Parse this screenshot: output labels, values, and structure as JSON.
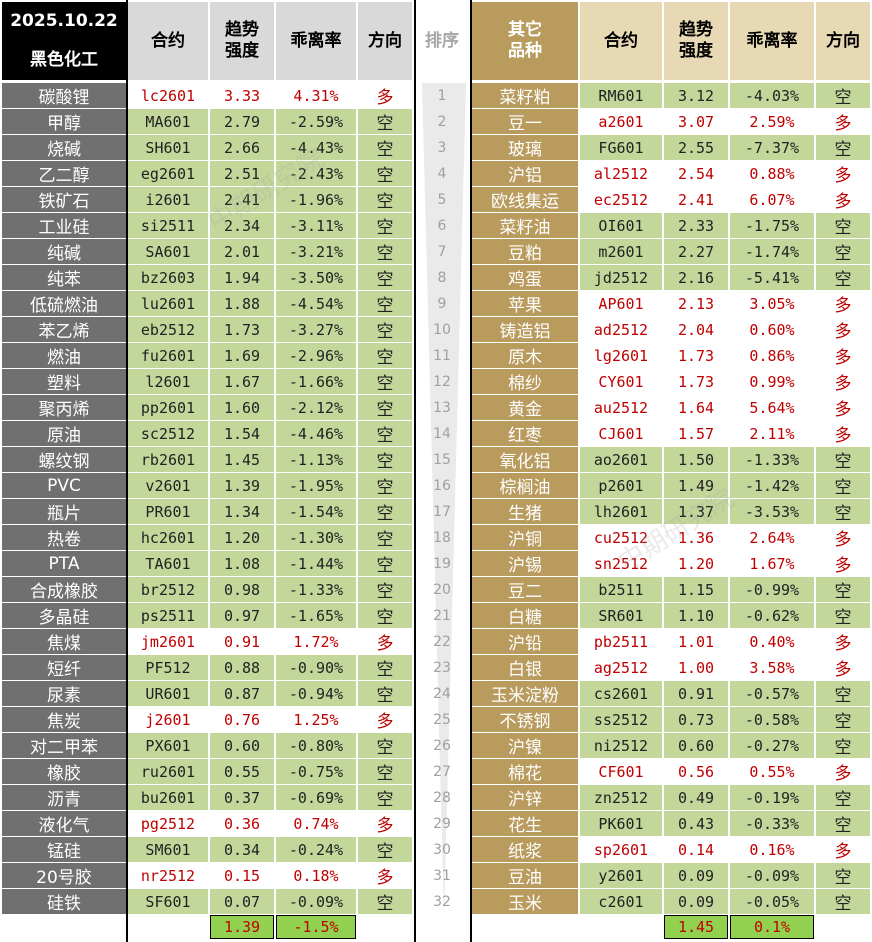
{
  "header": {
    "date": "2025.10.22",
    "left_group": "黑色化工",
    "col_contract": "合约",
    "col_trend": "趋势强度",
    "col_deviation": "乖离率",
    "col_direction": "方向",
    "col_rank": "排序",
    "right_group": "其它品种"
  },
  "colors": {
    "long_text": "#c00000",
    "short_bg": "#c4d79b",
    "left_cat_bg": "#707070",
    "right_cat_bg": "#b99b5e"
  },
  "left_rows": [
    {
      "name": "碳酸锂",
      "contract": "lc2601",
      "trend": "3.33",
      "dev": "4.31%",
      "dir": "多"
    },
    {
      "name": "甲醇",
      "contract": "MA601",
      "trend": "2.79",
      "dev": "-2.59%",
      "dir": "空"
    },
    {
      "name": "烧碱",
      "contract": "SH601",
      "trend": "2.66",
      "dev": "-4.43%",
      "dir": "空"
    },
    {
      "name": "乙二醇",
      "contract": "eg2601",
      "trend": "2.51",
      "dev": "-2.43%",
      "dir": "空"
    },
    {
      "name": "铁矿石",
      "contract": "i2601",
      "trend": "2.41",
      "dev": "-1.96%",
      "dir": "空"
    },
    {
      "name": "工业硅",
      "contract": "si2511",
      "trend": "2.34",
      "dev": "-3.11%",
      "dir": "空"
    },
    {
      "name": "纯碱",
      "contract": "SA601",
      "trend": "2.01",
      "dev": "-3.21%",
      "dir": "空"
    },
    {
      "name": "纯苯",
      "contract": "bz2603",
      "trend": "1.94",
      "dev": "-3.50%",
      "dir": "空"
    },
    {
      "name": "低硫燃油",
      "contract": "lu2601",
      "trend": "1.88",
      "dev": "-4.54%",
      "dir": "空"
    },
    {
      "name": "苯乙烯",
      "contract": "eb2512",
      "trend": "1.73",
      "dev": "-3.27%",
      "dir": "空"
    },
    {
      "name": "燃油",
      "contract": "fu2601",
      "trend": "1.69",
      "dev": "-2.96%",
      "dir": "空"
    },
    {
      "name": "塑料",
      "contract": "l2601",
      "trend": "1.67",
      "dev": "-1.66%",
      "dir": "空"
    },
    {
      "name": "聚丙烯",
      "contract": "pp2601",
      "trend": "1.60",
      "dev": "-2.12%",
      "dir": "空"
    },
    {
      "name": "原油",
      "contract": "sc2512",
      "trend": "1.54",
      "dev": "-4.46%",
      "dir": "空"
    },
    {
      "name": "螺纹钢",
      "contract": "rb2601",
      "trend": "1.45",
      "dev": "-1.13%",
      "dir": "空"
    },
    {
      "name": "PVC",
      "contract": "v2601",
      "trend": "1.39",
      "dev": "-1.95%",
      "dir": "空"
    },
    {
      "name": "瓶片",
      "contract": "PR601",
      "trend": "1.34",
      "dev": "-1.54%",
      "dir": "空"
    },
    {
      "name": "热卷",
      "contract": "hc2601",
      "trend": "1.20",
      "dev": "-1.30%",
      "dir": "空"
    },
    {
      "name": "PTA",
      "contract": "TA601",
      "trend": "1.08",
      "dev": "-1.44%",
      "dir": "空"
    },
    {
      "name": "合成橡胶",
      "contract": "br2512",
      "trend": "0.98",
      "dev": "-1.33%",
      "dir": "空"
    },
    {
      "name": "多晶硅",
      "contract": "ps2511",
      "trend": "0.97",
      "dev": "-1.65%",
      "dir": "空"
    },
    {
      "name": "焦煤",
      "contract": "jm2601",
      "trend": "0.91",
      "dev": "1.72%",
      "dir": "多"
    },
    {
      "name": "短纤",
      "contract": "PF512",
      "trend": "0.88",
      "dev": "-0.90%",
      "dir": "空"
    },
    {
      "name": "尿素",
      "contract": "UR601",
      "trend": "0.87",
      "dev": "-0.94%",
      "dir": "空"
    },
    {
      "name": "焦炭",
      "contract": "j2601",
      "trend": "0.76",
      "dev": "1.25%",
      "dir": "多"
    },
    {
      "name": "对二甲苯",
      "contract": "PX601",
      "trend": "0.60",
      "dev": "-0.80%",
      "dir": "空"
    },
    {
      "name": "橡胶",
      "contract": "ru2601",
      "trend": "0.55",
      "dev": "-0.75%",
      "dir": "空"
    },
    {
      "name": "沥青",
      "contract": "bu2601",
      "trend": "0.37",
      "dev": "-0.69%",
      "dir": "空"
    },
    {
      "name": "液化气",
      "contract": "pg2512",
      "trend": "0.36",
      "dev": "0.74%",
      "dir": "多"
    },
    {
      "name": "锰硅",
      "contract": "SM601",
      "trend": "0.34",
      "dev": "-0.24%",
      "dir": "空"
    },
    {
      "name": "20号胶",
      "contract": "nr2512",
      "trend": "0.15",
      "dev": "0.18%",
      "dir": "多"
    },
    {
      "name": "硅铁",
      "contract": "SF601",
      "trend": "0.07",
      "dev": "-0.09%",
      "dir": "空"
    }
  ],
  "ranks": [
    "1",
    "2",
    "3",
    "4",
    "5",
    "6",
    "7",
    "8",
    "9",
    "10",
    "11",
    "12",
    "13",
    "14",
    "15",
    "16",
    "17",
    "18",
    "19",
    "20",
    "21",
    "22",
    "23",
    "24",
    "25",
    "26",
    "27",
    "28",
    "29",
    "30",
    "31",
    "32"
  ],
  "right_rows": [
    {
      "name": "菜籽粕",
      "contract": "RM601",
      "trend": "3.12",
      "dev": "-4.03%",
      "dir": "空"
    },
    {
      "name": "豆一",
      "contract": "a2601",
      "trend": "3.07",
      "dev": "2.59%",
      "dir": "多"
    },
    {
      "name": "玻璃",
      "contract": "FG601",
      "trend": "2.55",
      "dev": "-7.37%",
      "dir": "空"
    },
    {
      "name": "沪铝",
      "contract": "al2512",
      "trend": "2.54",
      "dev": "0.88%",
      "dir": "多"
    },
    {
      "name": "欧线集运",
      "contract": "ec2512",
      "trend": "2.41",
      "dev": "6.07%",
      "dir": "多"
    },
    {
      "name": "菜籽油",
      "contract": "OI601",
      "trend": "2.33",
      "dev": "-1.75%",
      "dir": "空"
    },
    {
      "name": "豆粕",
      "contract": "m2601",
      "trend": "2.27",
      "dev": "-1.74%",
      "dir": "空"
    },
    {
      "name": "鸡蛋",
      "contract": "jd2512",
      "trend": "2.16",
      "dev": "-5.41%",
      "dir": "空"
    },
    {
      "name": "苹果",
      "contract": "AP601",
      "trend": "2.13",
      "dev": "3.05%",
      "dir": "多"
    },
    {
      "name": "铸造铝",
      "contract": "ad2512",
      "trend": "2.04",
      "dev": "0.60%",
      "dir": "多"
    },
    {
      "name": "原木",
      "contract": "lg2601",
      "trend": "1.73",
      "dev": "0.86%",
      "dir": "多"
    },
    {
      "name": "棉纱",
      "contract": "CY601",
      "trend": "1.73",
      "dev": "0.99%",
      "dir": "多"
    },
    {
      "name": "黄金",
      "contract": "au2512",
      "trend": "1.64",
      "dev": "5.64%",
      "dir": "多"
    },
    {
      "name": "红枣",
      "contract": "CJ601",
      "trend": "1.57",
      "dev": "2.11%",
      "dir": "多"
    },
    {
      "name": "氧化铝",
      "contract": "ao2601",
      "trend": "1.50",
      "dev": "-1.33%",
      "dir": "空"
    },
    {
      "name": "棕榈油",
      "contract": "p2601",
      "trend": "1.49",
      "dev": "-1.42%",
      "dir": "空"
    },
    {
      "name": "生猪",
      "contract": "lh2601",
      "trend": "1.37",
      "dev": "-3.53%",
      "dir": "空"
    },
    {
      "name": "沪铜",
      "contract": "cu2512",
      "trend": "1.36",
      "dev": "2.64%",
      "dir": "多"
    },
    {
      "name": "沪锡",
      "contract": "sn2512",
      "trend": "1.20",
      "dev": "1.67%",
      "dir": "多"
    },
    {
      "name": "豆二",
      "contract": "b2511",
      "trend": "1.15",
      "dev": "-0.99%",
      "dir": "空"
    },
    {
      "name": "白糖",
      "contract": "SR601",
      "trend": "1.10",
      "dev": "-0.62%",
      "dir": "空"
    },
    {
      "name": "沪铅",
      "contract": "pb2511",
      "trend": "1.01",
      "dev": "0.40%",
      "dir": "多"
    },
    {
      "name": "白银",
      "contract": "ag2512",
      "trend": "1.00",
      "dev": "3.58%",
      "dir": "多"
    },
    {
      "name": "玉米淀粉",
      "contract": "cs2601",
      "trend": "0.91",
      "dev": "-0.57%",
      "dir": "空"
    },
    {
      "name": "不锈钢",
      "contract": "ss2512",
      "trend": "0.73",
      "dev": "-0.58%",
      "dir": "空"
    },
    {
      "name": "沪镍",
      "contract": "ni2512",
      "trend": "0.60",
      "dev": "-0.27%",
      "dir": "空"
    },
    {
      "name": "棉花",
      "contract": "CF601",
      "trend": "0.56",
      "dev": "0.55%",
      "dir": "多"
    },
    {
      "name": "沪锌",
      "contract": "zn2512",
      "trend": "0.49",
      "dev": "-0.19%",
      "dir": "空"
    },
    {
      "name": "花生",
      "contract": "PK601",
      "trend": "0.43",
      "dev": "-0.33%",
      "dir": "空"
    },
    {
      "name": "纸浆",
      "contract": "sp2601",
      "trend": "0.14",
      "dev": "0.16%",
      "dir": "多"
    },
    {
      "name": "豆油",
      "contract": "y2601",
      "trend": "0.09",
      "dev": "-0.09%",
      "dir": "空"
    },
    {
      "name": "玉米",
      "contract": "c2601",
      "trend": "0.09",
      "dev": "-0.05%",
      "dir": "空"
    }
  ],
  "footer": {
    "left_avg_trend": "1.39",
    "left_avg_dev": "-1.5%",
    "right_avg_trend": "1.45",
    "right_avg_dev": "0.1%"
  },
  "watermarks": {
    "text": "中期研究院",
    "brand": "大数跨境"
  }
}
